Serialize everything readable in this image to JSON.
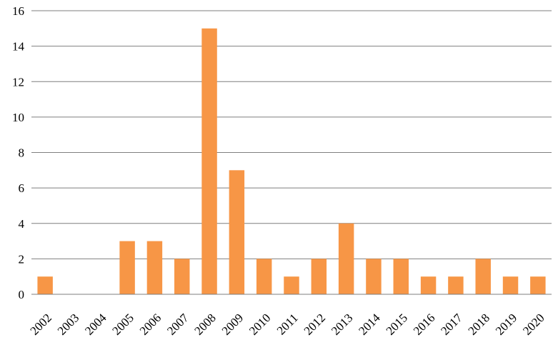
{
  "chart_data": {
    "type": "bar",
    "categories": [
      "2002",
      "2003",
      "2004",
      "2005",
      "2006",
      "2007",
      "2008",
      "2009",
      "2010",
      "2011",
      "2012",
      "2013",
      "2014",
      "2015",
      "2016",
      "2017",
      "2018",
      "2019",
      "2020"
    ],
    "values": [
      1,
      0,
      0,
      3,
      3,
      2,
      15,
      7,
      2,
      1,
      2,
      4,
      2,
      2,
      1,
      1,
      2,
      1,
      1
    ],
    "ylim": [
      0,
      16
    ],
    "yticks": [
      0,
      2,
      4,
      6,
      8,
      10,
      12,
      14,
      16
    ],
    "title": "",
    "xlabel": "",
    "ylabel": "",
    "grid": true,
    "bar_color": "#F79646"
  }
}
